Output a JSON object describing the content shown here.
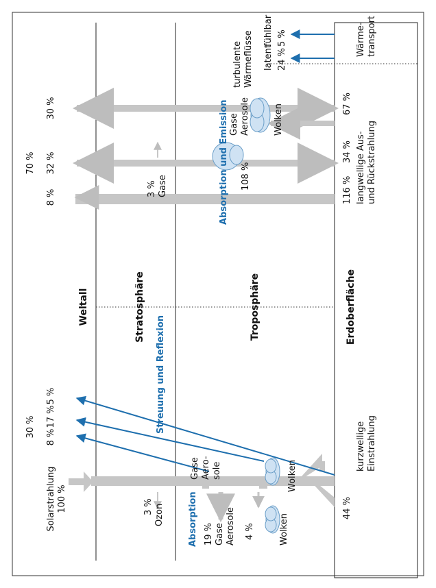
{
  "zones": {
    "space": "Weltall",
    "stratosphere": "Stratosphäre",
    "troposphere": "Troposphäre",
    "surface": "Erdoberfläche"
  },
  "shortwave": {
    "input": {
      "label": "Solarstrahlung",
      "value": "100 %"
    },
    "absorption_label": "Absorption",
    "ozone": {
      "value": "3 %",
      "label": "Ozon"
    },
    "gases_aerosols": {
      "value": "19 %",
      "label1": "Gase",
      "label2": "Aerosole"
    },
    "clouds_abs": {
      "value": "4 %",
      "label": "Wolken"
    },
    "scatter_label": "Streuung und Reflexion",
    "scatter_total": "30 %",
    "scatter_parts": [
      "8 %",
      "17 %",
      "5 %"
    ],
    "reflect_gas": [
      "Gase",
      "Aero-",
      "sole"
    ],
    "reflect_clouds": "Wolken",
    "surface_value": "44 %",
    "surface_label": [
      "kurzwellige",
      "Einstrahlung"
    ]
  },
  "longwave": {
    "emission_label": "Absorption und Emission",
    "total": "70 %",
    "parts": [
      "8 %",
      "32 %",
      "30 %"
    ],
    "gases3": {
      "value": "3 %",
      "label": "Gase"
    },
    "gas_aerosol": [
      "Gase",
      "Aerosole"
    ],
    "clouds": "Wolken",
    "val108": "108 %",
    "surface_values": [
      "116 %",
      "34 %",
      "67 %"
    ],
    "surface_label": [
      "langwellige Aus-",
      "und Rückstrahlung"
    ]
  },
  "heat": {
    "title": [
      "turbulente",
      "Wärmeflüsse"
    ],
    "sensible": {
      "label": "fühlbar",
      "value": "5 %"
    },
    "latent": {
      "label": "latent",
      "value": "24 %"
    },
    "transport": [
      "Wärme-",
      "transport"
    ]
  }
}
